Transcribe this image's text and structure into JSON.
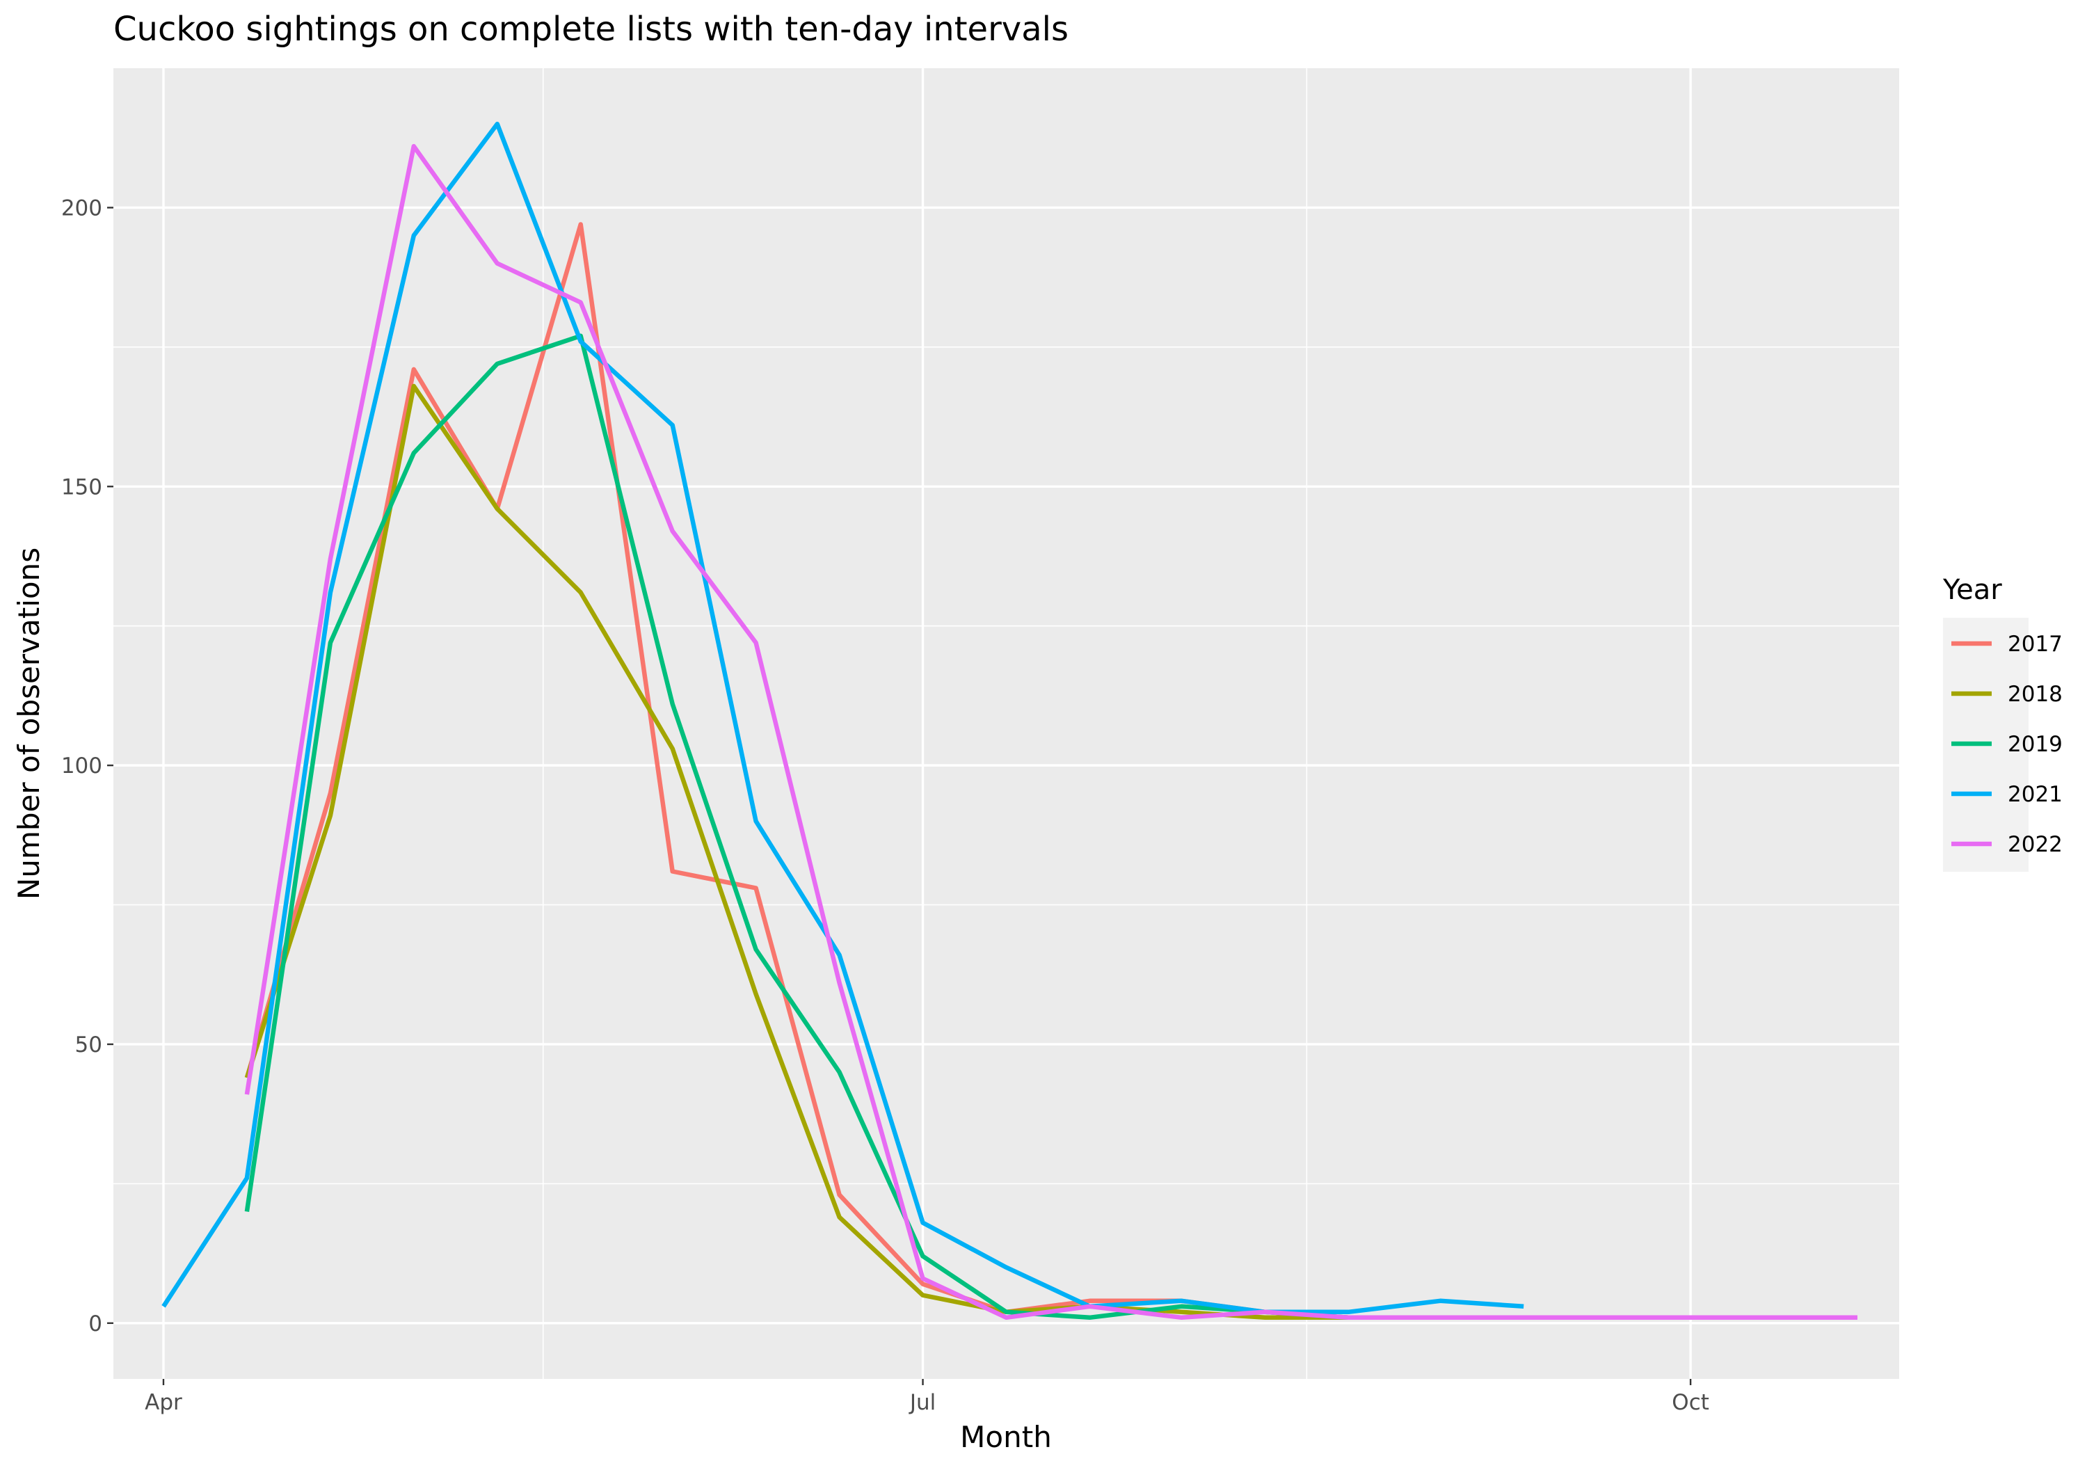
{
  "chart_data": {
    "type": "line",
    "title": "Cuckoo sightings on complete lists with ten-day intervals",
    "xlabel": "Month",
    "ylabel": "Number of observations",
    "x_axis": "date (ten-day intervals, day of year)",
    "xlim": [
      "2000-03-26",
      "2000-10-26"
    ],
    "ylim": [
      -10,
      225
    ],
    "x_ticks": [
      {
        "date": "2000-04-01",
        "label": "Apr"
      },
      {
        "date": "2000-07-01",
        "label": "Jul"
      },
      {
        "date": "2000-10-01",
        "label": "Oct"
      }
    ],
    "y_ticks": [
      0,
      50,
      100,
      150,
      200
    ],
    "grid": true,
    "background": "#ebebeb",
    "legend": {
      "title": "Year",
      "position": "right"
    },
    "x": [
      "2000-04-01",
      "2000-04-11",
      "2000-04-21",
      "2000-05-01",
      "2000-05-11",
      "2000-05-21",
      "2000-06-01",
      "2000-06-11",
      "2000-06-21",
      "2000-07-01",
      "2000-07-11",
      "2000-07-21",
      "2000-08-01",
      "2000-08-11",
      "2000-08-21",
      "2000-09-01",
      "2000-09-11",
      "2000-09-21",
      "2000-10-01",
      "2000-10-11",
      "2000-10-21"
    ],
    "series": [
      {
        "name": "2017",
        "color": "#F8766D",
        "values": [
          null,
          44,
          95,
          171,
          146,
          197,
          81,
          78,
          23,
          7,
          2,
          4,
          4,
          2,
          1,
          1,
          1,
          null,
          null,
          null,
          null
        ]
      },
      {
        "name": "2018",
        "color": "#A3A500",
        "values": [
          null,
          44,
          91,
          168,
          146,
          131,
          103,
          59,
          19,
          5,
          2,
          3,
          2,
          1,
          1,
          1,
          1,
          1,
          1,
          1,
          1
        ]
      },
      {
        "name": "2019",
        "color": "#00BF7D",
        "values": [
          null,
          20,
          122,
          156,
          172,
          177,
          111,
          67,
          45,
          12,
          2,
          1,
          3,
          2,
          1,
          1,
          1,
          1,
          1,
          1,
          1
        ]
      },
      {
        "name": "2021",
        "color": "#00B0F6",
        "values": [
          3,
          26,
          131,
          195,
          215,
          176,
          161,
          90,
          66,
          18,
          10,
          3,
          4,
          2,
          2,
          4,
          3,
          null,
          null,
          null,
          null
        ]
      },
      {
        "name": "2022",
        "color": "#E76BF3",
        "values": [
          null,
          41,
          137,
          211,
          190,
          183,
          142,
          122,
          61,
          8,
          1,
          3,
          1,
          2,
          1,
          1,
          1,
          1,
          1,
          1,
          1
        ]
      }
    ]
  }
}
